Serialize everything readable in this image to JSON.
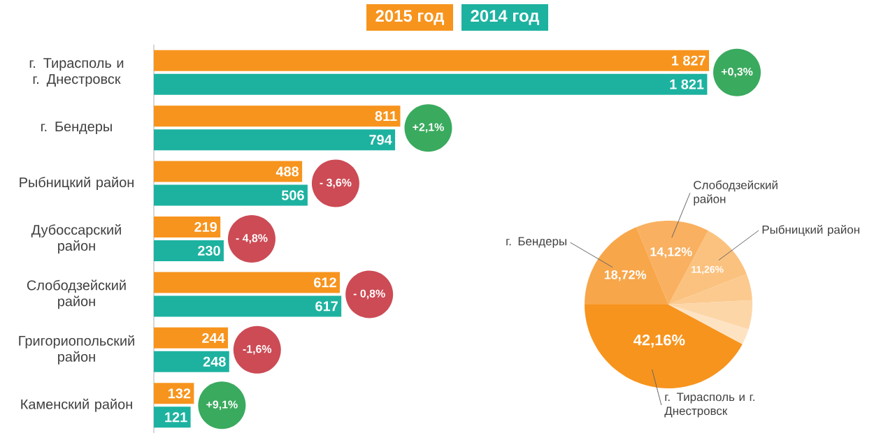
{
  "chart_data": [
    {
      "type": "bar",
      "orientation": "horizontal",
      "legend": "top",
      "categories": [
        "г. Тирасполь и г. Днестровск",
        "г. Бендеры",
        "Рыбницкий район",
        "Дубоссарский район",
        "Слободзейский район",
        "Григориопольский район",
        "Каменский район"
      ],
      "series": [
        {
          "name": "2015 год",
          "color": "#f7941d",
          "values": [
            1827,
            811,
            488,
            219,
            612,
            244,
            132
          ],
          "value_labels": [
            "1 827",
            "811",
            "488",
            "219",
            "612",
            "244",
            "132"
          ]
        },
        {
          "name": "2014 год",
          "color": "#1db2a0",
          "values": [
            1821,
            794,
            506,
            230,
            617,
            248,
            121
          ],
          "value_labels": [
            "1 821",
            "794",
            "506",
            "230",
            "617",
            "248",
            "121"
          ]
        }
      ],
      "annotations": [
        {
          "text": "+0,3%",
          "y": "г. Тирасполь и г. Днестровск"
        },
        {
          "text": "+2,1%",
          "y": "г. Бендеры"
        },
        {
          "text": "- 3,6%",
          "y": "Рыбницкий район"
        },
        {
          "text": "- 4,8%",
          "y": "Дубоссарский район"
        },
        {
          "text": "- 0,8%",
          "y": "Слободзейский район"
        },
        {
          "text": "-1,6%",
          "y": "Григориопольский район"
        },
        {
          "text": "+9,1%",
          "y": "Каменский район"
        }
      ]
    },
    {
      "type": "pie",
      "categories": [
        "г. Тирасполь и г. Днестровск",
        null,
        null,
        null,
        "Рыбницкий район",
        "Слободзейский район",
        "г. Бендеры"
      ],
      "values": [
        42.16,
        3.05,
        5.63,
        5.05,
        11.26,
        14.12,
        18.72
      ],
      "colors": [
        "#f7941d",
        "#fee3c3",
        "#fdd6a8",
        "#fcca8f",
        "#fbc27f",
        "#f9b060",
        "#f8a64a"
      ],
      "value_labels": [
        "42,16%",
        null,
        null,
        null,
        "11,26%",
        "14,12%",
        "18,72%"
      ]
    }
  ]
}
